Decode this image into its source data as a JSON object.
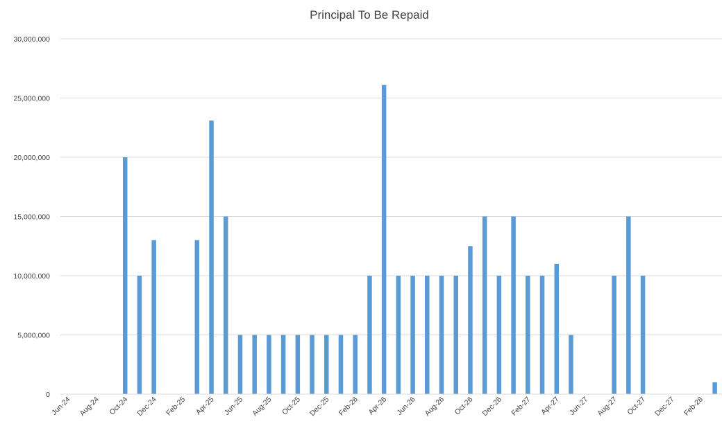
{
  "chart_data": {
    "type": "bar",
    "title": "Principal To Be Repaid",
    "xlabel": "",
    "ylabel": "",
    "ylim": [
      0,
      30000000
    ],
    "yticks": [
      0,
      5000000,
      10000000,
      15000000,
      20000000,
      25000000,
      30000000
    ],
    "ytick_labels": [
      "0",
      "5,000,000",
      "10,000,000",
      "15,000,000",
      "20,000,000",
      "25,000,000",
      "30,000,000"
    ],
    "grid": true,
    "bar_color": "#5B9BD5",
    "categories": [
      "Jun-24",
      "Jul-24",
      "Aug-24",
      "Sep-24",
      "Oct-24",
      "Nov-24",
      "Dec-24",
      "Jan-25",
      "Feb-25",
      "Mar-25",
      "Apr-25",
      "May-25",
      "Jun-25",
      "Jul-25",
      "Aug-25",
      "Sep-25",
      "Oct-25",
      "Nov-25",
      "Dec-25",
      "Jan-26",
      "Feb-26",
      "Mar-26",
      "Apr-26",
      "May-26",
      "Jun-26",
      "Jul-26",
      "Aug-26",
      "Sep-26",
      "Oct-26",
      "Nov-26",
      "Dec-26",
      "Jan-27",
      "Feb-27",
      "Mar-27",
      "Apr-27",
      "May-27",
      "Jun-27",
      "Jul-27",
      "Aug-27",
      "Sep-27",
      "Oct-27",
      "Nov-27",
      "Dec-27",
      "Jan-28",
      "Feb-28",
      "Mar-28"
    ],
    "xtick_labels": [
      "Jun-24",
      "Aug-24",
      "Oct-24",
      "Dec-24",
      "Feb-25",
      "Apr-25",
      "Jun-25",
      "Aug-25",
      "Oct-25",
      "Dec-25",
      "Feb-26",
      "Apr-26",
      "Jun-26",
      "Aug-26",
      "Oct-26",
      "Dec-26",
      "Feb-27",
      "Apr-27",
      "Jun-27",
      "Aug-27",
      "Oct-27",
      "Dec-27",
      "Feb-28"
    ],
    "values": [
      0,
      0,
      0,
      0,
      20000000,
      10000000,
      13000000,
      0,
      0,
      13000000,
      23100000,
      15000000,
      5000000,
      5000000,
      5000000,
      5000000,
      5000000,
      5000000,
      5000000,
      5000000,
      5000000,
      10000000,
      26100000,
      10000000,
      10000000,
      10000000,
      10000000,
      10000000,
      12500000,
      15000000,
      10000000,
      15000000,
      10000000,
      10000000,
      11000000,
      5000000,
      0,
      0,
      10000000,
      15000000,
      10000000,
      0,
      0,
      0,
      0,
      1000000
    ]
  }
}
